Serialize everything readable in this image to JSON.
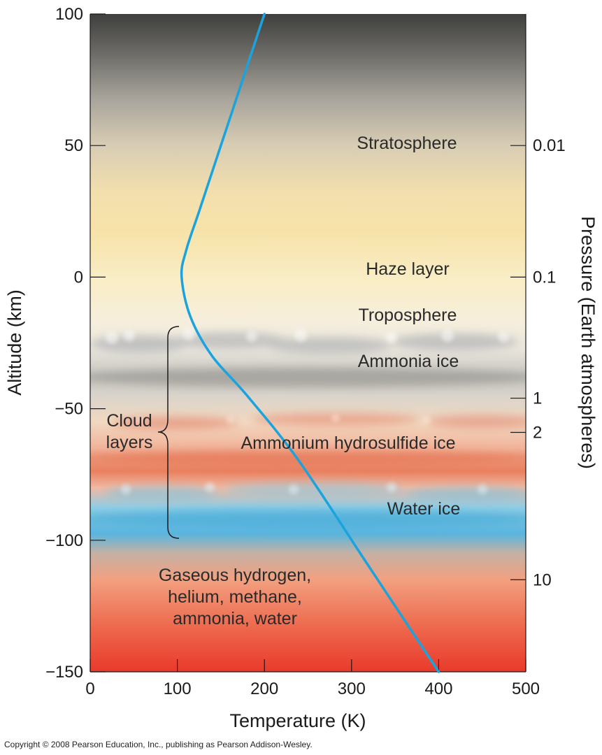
{
  "chart_data": {
    "type": "line",
    "xlabel": "Temperature (K)",
    "ylabel": "Altitude (km)",
    "ylabel_right": "Pressure (Earth atmospheres)",
    "xlim": [
      0,
      500
    ],
    "ylim": [
      -150,
      100
    ],
    "x_ticks": [
      0,
      100,
      200,
      300,
      400,
      500
    ],
    "y_ticks": [
      100,
      50,
      0,
      -50,
      -100,
      -150
    ],
    "pressure_ticks": [
      {
        "label": "0.01",
        "altitude": 50
      },
      {
        "label": "0.1",
        "altitude": 0
      },
      {
        "label": "1",
        "altitude": -46
      },
      {
        "label": "2",
        "altitude": -59
      },
      {
        "label": "10",
        "altitude": -115
      }
    ],
    "series": [
      {
        "x": [
          200,
          175,
          150,
          125,
          110,
          105,
          115,
          140,
          180,
          240,
          320,
          400
        ],
        "y": [
          100,
          75,
          50,
          25,
          10,
          0,
          -15,
          -30,
          -45,
          -70,
          -110,
          -150
        ]
      }
    ],
    "colors": {
      "line": "#1aa3dc",
      "ammonia": "#b9b8b4",
      "hydrosulfide": "#e5876a",
      "water": "#5cb7dc",
      "deep": "#ea3a2e"
    },
    "grid": false
  },
  "annotations": {
    "stratosphere": "Stratosphere",
    "haze": "Haze layer",
    "troposphere": "Troposphere",
    "ammonia": "Ammonia ice",
    "hydrosulfide": "Ammonium hydrosulfide ice",
    "water": "Water ice",
    "cloud_line1": "Cloud",
    "cloud_line2": "layers",
    "gas_line1": "Gaseous hydrogen,",
    "gas_line2": "helium, methane,",
    "gas_line3": "ammonia, water"
  },
  "copyright": "Copyright © 2008 Pearson Education, Inc., publishing as Pearson Addison-Wesley."
}
